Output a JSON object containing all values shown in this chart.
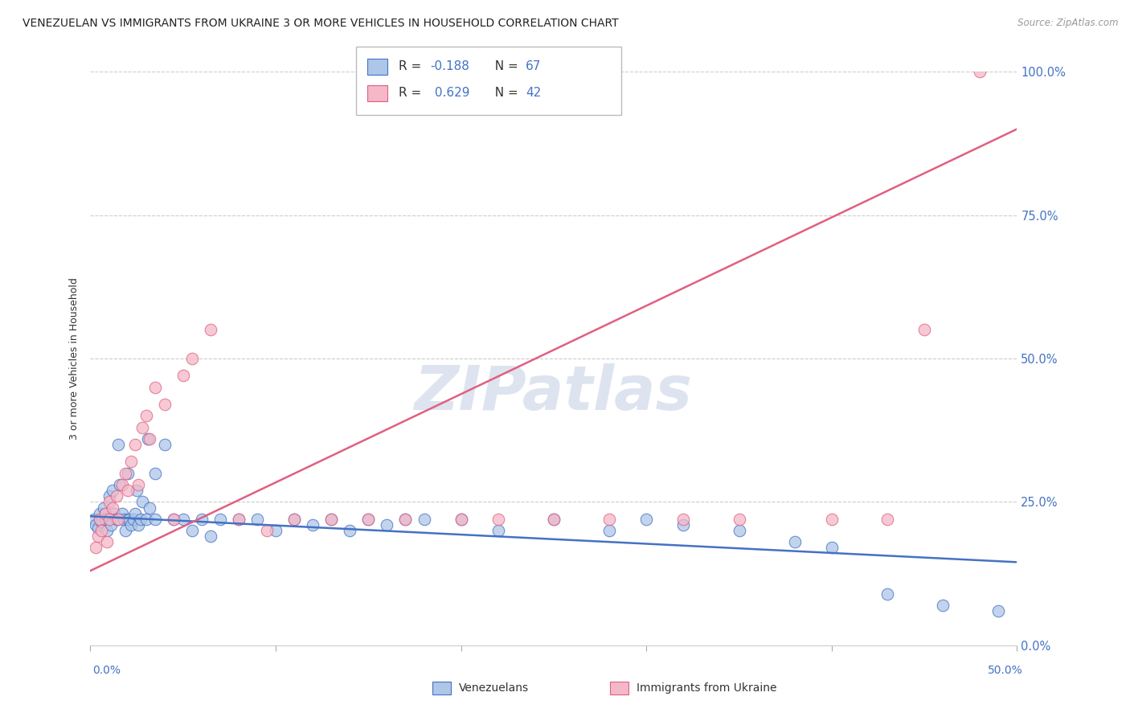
{
  "title": "VENEZUELAN VS IMMIGRANTS FROM UKRAINE 3 OR MORE VEHICLES IN HOUSEHOLD CORRELATION CHART",
  "source": "Source: ZipAtlas.com",
  "ylabel": "3 or more Vehicles in Household",
  "ytick_values": [
    0.0,
    25.0,
    50.0,
    75.0,
    100.0
  ],
  "xlim": [
    0.0,
    50.0
  ],
  "ylim": [
    0.0,
    100.0
  ],
  "venezuelan_color": "#aec6e8",
  "ukraine_color": "#f4b8c8",
  "venezuelan_line_color": "#4472c4",
  "ukraine_line_color": "#e06080",
  "watermark_color": "#dde4ef",
  "venezuelan_R": -0.188,
  "venezuela_N": 67,
  "ukraine_R": 0.629,
  "ukraine_N": 42,
  "ven_line_y0": 22.5,
  "ven_line_y50": 14.5,
  "ukr_line_y0": 13.0,
  "ukr_line_y50": 90.0,
  "ven_x": [
    0.2,
    0.3,
    0.4,
    0.5,
    0.5,
    0.6,
    0.7,
    0.8,
    0.8,
    0.9,
    1.0,
    1.0,
    1.1,
    1.2,
    1.3,
    1.4,
    1.5,
    1.5,
    1.6,
    1.7,
    1.8,
    1.9,
    2.0,
    2.0,
    2.1,
    2.2,
    2.3,
    2.4,
    2.5,
    2.6,
    2.7,
    2.8,
    3.0,
    3.1,
    3.2,
    3.5,
    3.5,
    4.0,
    4.5,
    5.0,
    5.5,
    6.0,
    6.5,
    7.0,
    8.0,
    9.0,
    10.0,
    11.0,
    12.0,
    13.0,
    14.0,
    15.0,
    16.0,
    17.0,
    18.0,
    20.0,
    22.0,
    25.0,
    28.0,
    30.0,
    32.0,
    35.0,
    38.0,
    40.0,
    43.0,
    46.0,
    49.0
  ],
  "ven_y": [
    22.0,
    21.0,
    20.5,
    22.0,
    23.0,
    21.5,
    24.0,
    23.0,
    22.0,
    20.0,
    26.0,
    22.0,
    21.0,
    27.0,
    23.0,
    22.0,
    35.0,
    22.0,
    28.0,
    23.0,
    22.0,
    20.0,
    30.0,
    22.0,
    22.0,
    21.0,
    22.0,
    23.0,
    27.0,
    21.0,
    22.0,
    25.0,
    22.0,
    36.0,
    24.0,
    22.0,
    30.0,
    35.0,
    22.0,
    22.0,
    20.0,
    22.0,
    19.0,
    22.0,
    22.0,
    22.0,
    20.0,
    22.0,
    21.0,
    22.0,
    20.0,
    22.0,
    21.0,
    22.0,
    22.0,
    22.0,
    20.0,
    22.0,
    20.0,
    22.0,
    21.0,
    20.0,
    18.0,
    17.0,
    9.0,
    7.0,
    6.0
  ],
  "ukr_x": [
    0.3,
    0.4,
    0.5,
    0.6,
    0.8,
    0.9,
    1.0,
    1.0,
    1.2,
    1.4,
    1.5,
    1.7,
    1.9,
    2.0,
    2.2,
    2.4,
    2.6,
    2.8,
    3.0,
    3.2,
    3.5,
    4.0,
    4.5,
    5.0,
    5.5,
    6.5,
    8.0,
    9.5,
    11.0,
    13.0,
    15.0,
    17.0,
    20.0,
    22.0,
    25.0,
    28.0,
    32.0,
    35.0,
    40.0,
    43.0,
    45.0,
    48.0
  ],
  "ukr_y": [
    17.0,
    19.0,
    22.0,
    20.0,
    23.0,
    18.0,
    25.0,
    22.0,
    24.0,
    26.0,
    22.0,
    28.0,
    30.0,
    27.0,
    32.0,
    35.0,
    28.0,
    38.0,
    40.0,
    36.0,
    45.0,
    42.0,
    22.0,
    47.0,
    50.0,
    55.0,
    22.0,
    20.0,
    22.0,
    22.0,
    22.0,
    22.0,
    22.0,
    22.0,
    22.0,
    22.0,
    22.0,
    22.0,
    22.0,
    22.0,
    55.0,
    100.0
  ]
}
